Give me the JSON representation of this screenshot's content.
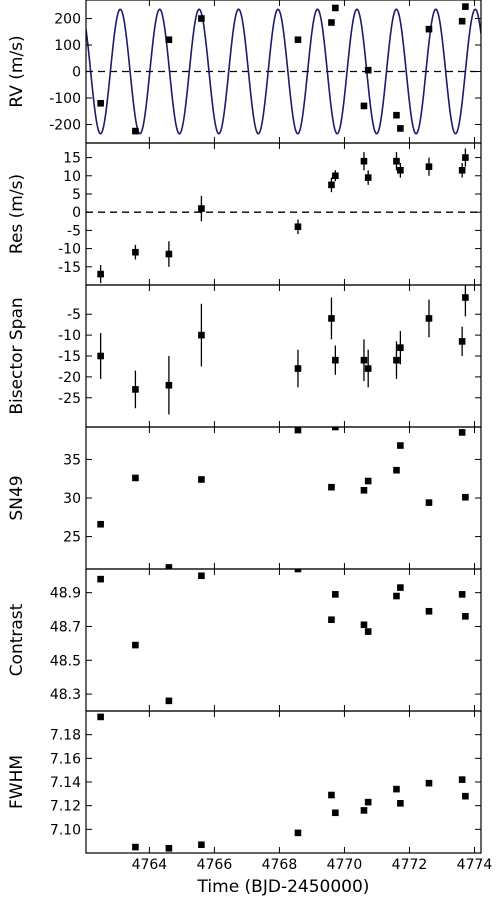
{
  "chart_data": [
    {
      "type": "scatter",
      "ylabel": "RV (m/s)",
      "xlim": [
        4762.05,
        4774.2
      ],
      "ylim": [
        -270,
        270
      ],
      "yticks": [
        -200,
        -100,
        0,
        100,
        200
      ],
      "zero_line": true,
      "model_curve": {
        "type": "sinusoid",
        "amplitude": 235,
        "period": 1.2133,
        "phase_zero_x": 4762.8,
        "color": "#1c1c6b"
      },
      "series": [
        {
          "points": [
            {
              "x": 4762.5,
              "y": -120
            },
            {
              "x": 4763.57,
              "y": -225
            },
            {
              "x": 4764.6,
              "y": 120
            },
            {
              "x": 4765.6,
              "y": 200
            },
            {
              "x": 4768.57,
              "y": 120
            },
            {
              "x": 4769.6,
              "y": 185
            },
            {
              "x": 4769.72,
              "y": 240
            },
            {
              "x": 4770.6,
              "y": -130
            },
            {
              "x": 4770.73,
              "y": 5
            },
            {
              "x": 4771.6,
              "y": -165
            },
            {
              "x": 4771.72,
              "y": -215
            },
            {
              "x": 4772.6,
              "y": 160
            },
            {
              "x": 4773.62,
              "y": 190
            },
            {
              "x": 4773.72,
              "y": 245
            }
          ]
        }
      ]
    },
    {
      "type": "scatter",
      "ylabel": "Res (m/s)",
      "xlim": [
        4762.05,
        4774.2
      ],
      "ylim": [
        -20,
        19
      ],
      "yticks": [
        -15,
        -10,
        -5,
        0,
        5,
        10,
        15
      ],
      "zero_line": true,
      "series": [
        {
          "points": [
            {
              "x": 4762.5,
              "y": -17,
              "err": 2.5
            },
            {
              "x": 4763.57,
              "y": -11,
              "err": 2
            },
            {
              "x": 4764.6,
              "y": -11.5,
              "err": 3.5
            },
            {
              "x": 4765.6,
              "y": 1,
              "err": 3.5
            },
            {
              "x": 4768.57,
              "y": -4,
              "err": 2
            },
            {
              "x": 4769.6,
              "y": 7.5,
              "err": 2
            },
            {
              "x": 4769.72,
              "y": 10,
              "err": 1.5
            },
            {
              "x": 4770.6,
              "y": 14,
              "err": 2.5
            },
            {
              "x": 4770.73,
              "y": 9.5,
              "err": 2
            },
            {
              "x": 4771.6,
              "y": 14,
              "err": 2.5
            },
            {
              "x": 4771.72,
              "y": 11.5,
              "err": 2
            },
            {
              "x": 4772.6,
              "y": 12.5,
              "err": 2.5
            },
            {
              "x": 4773.62,
              "y": 11.5,
              "err": 2
            },
            {
              "x": 4773.72,
              "y": 15,
              "err": 2.5
            }
          ]
        }
      ]
    },
    {
      "type": "scatter",
      "ylabel": "Bisector Span",
      "xlim": [
        4762.05,
        4774.2
      ],
      "ylim": [
        -32,
        2
      ],
      "yticks": [
        -25,
        -20,
        -15,
        -10,
        -5
      ],
      "series": [
        {
          "points": [
            {
              "x": 4762.5,
              "y": -15,
              "err": 5.5
            },
            {
              "x": 4763.57,
              "y": -23,
              "err": 4.5
            },
            {
              "x": 4764.6,
              "y": -22,
              "err": 7
            },
            {
              "x": 4765.6,
              "y": -10,
              "err": 7.5
            },
            {
              "x": 4768.57,
              "y": -18,
              "err": 4.5
            },
            {
              "x": 4769.6,
              "y": -6,
              "err": 5
            },
            {
              "x": 4769.72,
              "y": -16,
              "err": 3.5
            },
            {
              "x": 4770.6,
              "y": -16,
              "err": 5
            },
            {
              "x": 4770.73,
              "y": -18,
              "err": 4.5
            },
            {
              "x": 4771.6,
              "y": -16,
              "err": 4.5
            },
            {
              "x": 4771.72,
              "y": -13,
              "err": 4
            },
            {
              "x": 4772.6,
              "y": -6,
              "err": 4.5
            },
            {
              "x": 4773.62,
              "y": -11.5,
              "err": 3.5
            },
            {
              "x": 4773.72,
              "y": -1,
              "err": 4.5
            }
          ]
        }
      ]
    },
    {
      "type": "scatter",
      "ylabel": "SN49",
      "xlim": [
        4762.05,
        4774.2
      ],
      "ylim": [
        20.8,
        39.2
      ],
      "yticks": [
        25,
        30,
        35
      ],
      "series": [
        {
          "points": [
            {
              "x": 4762.5,
              "y": 26.6
            },
            {
              "x": 4763.57,
              "y": 32.6
            },
            {
              "x": 4764.6,
              "y": 21
            },
            {
              "x": 4765.6,
              "y": 32.4
            },
            {
              "x": 4768.57,
              "y": 38.8
            },
            {
              "x": 4769.6,
              "y": 31.4
            },
            {
              "x": 4769.72,
              "y": 39.2
            },
            {
              "x": 4770.6,
              "y": 31
            },
            {
              "x": 4770.73,
              "y": 32.2
            },
            {
              "x": 4771.6,
              "y": 33.6
            },
            {
              "x": 4771.72,
              "y": 36.8
            },
            {
              "x": 4772.6,
              "y": 29.4
            },
            {
              "x": 4773.62,
              "y": 38.5
            },
            {
              "x": 4773.72,
              "y": 30.1
            }
          ]
        }
      ]
    },
    {
      "type": "scatter",
      "ylabel": "Contrast",
      "xlim": [
        4762.05,
        4774.2
      ],
      "ylim": [
        48.2,
        49.04
      ],
      "yticks": [
        48.3,
        48.5,
        48.7,
        48.9
      ],
      "series": [
        {
          "points": [
            {
              "x": 4762.5,
              "y": 48.98
            },
            {
              "x": 4763.57,
              "y": 48.59
            },
            {
              "x": 4764.6,
              "y": 48.26
            },
            {
              "x": 4765.6,
              "y": 49.0
            },
            {
              "x": 4768.57,
              "y": 49.04
            },
            {
              "x": 4769.6,
              "y": 48.74
            },
            {
              "x": 4769.72,
              "y": 48.89
            },
            {
              "x": 4770.6,
              "y": 48.71
            },
            {
              "x": 4770.73,
              "y": 48.67
            },
            {
              "x": 4771.6,
              "y": 48.88
            },
            {
              "x": 4771.72,
              "y": 48.93
            },
            {
              "x": 4772.6,
              "y": 48.79
            },
            {
              "x": 4773.62,
              "y": 48.89
            },
            {
              "x": 4773.72,
              "y": 48.76
            }
          ]
        }
      ]
    },
    {
      "type": "scatter",
      "ylabel": "FWHM",
      "xlabel": "Time (BJD-2450000)",
      "xlim": [
        4762.05,
        4774.2
      ],
      "xticks": [
        4764,
        4766,
        4768,
        4770,
        4772,
        4774
      ],
      "ylim": [
        7.08,
        7.2
      ],
      "yticks": [
        7.1,
        7.12,
        7.14,
        7.16,
        7.18
      ],
      "ytick_labels": [
        "7.10",
        "7.12",
        "7.14",
        "7.16",
        "7.18"
      ],
      "series": [
        {
          "points": [
            {
              "x": 4762.5,
              "y": 7.195
            },
            {
              "x": 4763.57,
              "y": 7.085
            },
            {
              "x": 4764.6,
              "y": 7.084
            },
            {
              "x": 4765.6,
              "y": 7.087
            },
            {
              "x": 4768.57,
              "y": 7.097
            },
            {
              "x": 4769.6,
              "y": 7.129
            },
            {
              "x": 4769.72,
              "y": 7.114
            },
            {
              "x": 4770.6,
              "y": 7.116
            },
            {
              "x": 4770.73,
              "y": 7.123
            },
            {
              "x": 4771.6,
              "y": 7.134
            },
            {
              "x": 4771.72,
              "y": 7.122
            },
            {
              "x": 4772.6,
              "y": 7.139
            },
            {
              "x": 4773.62,
              "y": 7.142
            },
            {
              "x": 4773.72,
              "y": 7.128
            }
          ]
        }
      ]
    }
  ]
}
